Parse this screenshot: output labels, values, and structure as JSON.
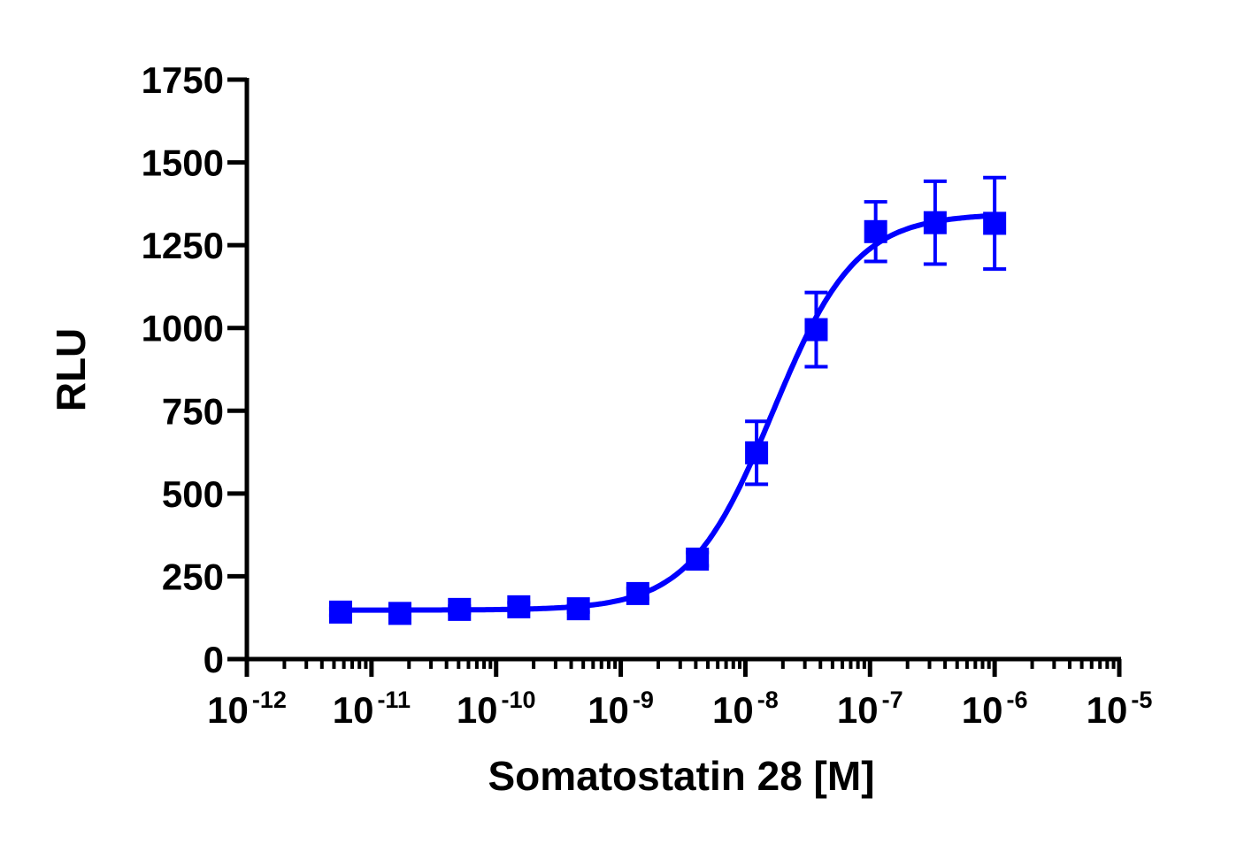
{
  "chart_data": {
    "type": "scatter",
    "title": "",
    "xlabel": "Somatostatin 28 [M]",
    "ylabel": "RLU",
    "xscale": "log",
    "xlim": [
      1e-12,
      1e-05
    ],
    "ylim": [
      0,
      1750
    ],
    "x_ticks": [
      {
        "base": "10",
        "exp": "-12"
      },
      {
        "base": "10",
        "exp": "-11"
      },
      {
        "base": "10",
        "exp": "-10"
      },
      {
        "base": "10",
        "exp": "-9"
      },
      {
        "base": "10",
        "exp": "-8"
      },
      {
        "base": "10",
        "exp": "-7"
      },
      {
        "base": "10",
        "exp": "-6"
      },
      {
        "base": "10",
        "exp": "-5"
      }
    ],
    "y_ticks": [
      "0",
      "250",
      "500",
      "750",
      "1000",
      "1250",
      "1500",
      "1750"
    ],
    "grid": false,
    "color": "#0000ff",
    "series": [
      {
        "marker": "square",
        "x": [
          5.65e-12,
          1.69e-11,
          5.08e-11,
          1.52e-10,
          4.57e-10,
          1.37e-09,
          4.12e-09,
          1.23e-08,
          3.7e-08,
          1.11e-07,
          3.33e-07,
          1e-06
        ],
        "y": [
          142,
          138,
          150,
          158,
          152,
          198,
          302,
          623,
          995,
          1291,
          1318,
          1316
        ],
        "error": [
          10,
          10,
          10,
          12,
          10,
          15,
          20,
          95,
          112,
          90,
          125,
          138
        ]
      }
    ],
    "fit": {
      "model": "sigmoidal dose-response",
      "bottom": 148,
      "top": 1345,
      "log_ec50": -7.78,
      "hill": 1.3
    }
  }
}
